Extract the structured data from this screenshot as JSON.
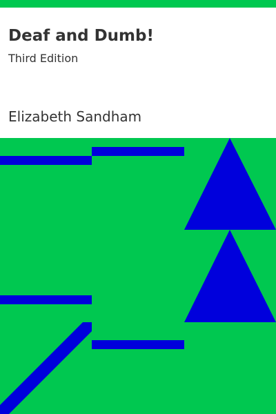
{
  "book": {
    "title": "Deaf and Dumb!",
    "edition": "Third Edition",
    "author": "Elizabeth Sandham"
  },
  "colors": {
    "background": "#00c850",
    "panel": "#ffffff",
    "text": "#333333",
    "shapes": "#0000dc"
  }
}
